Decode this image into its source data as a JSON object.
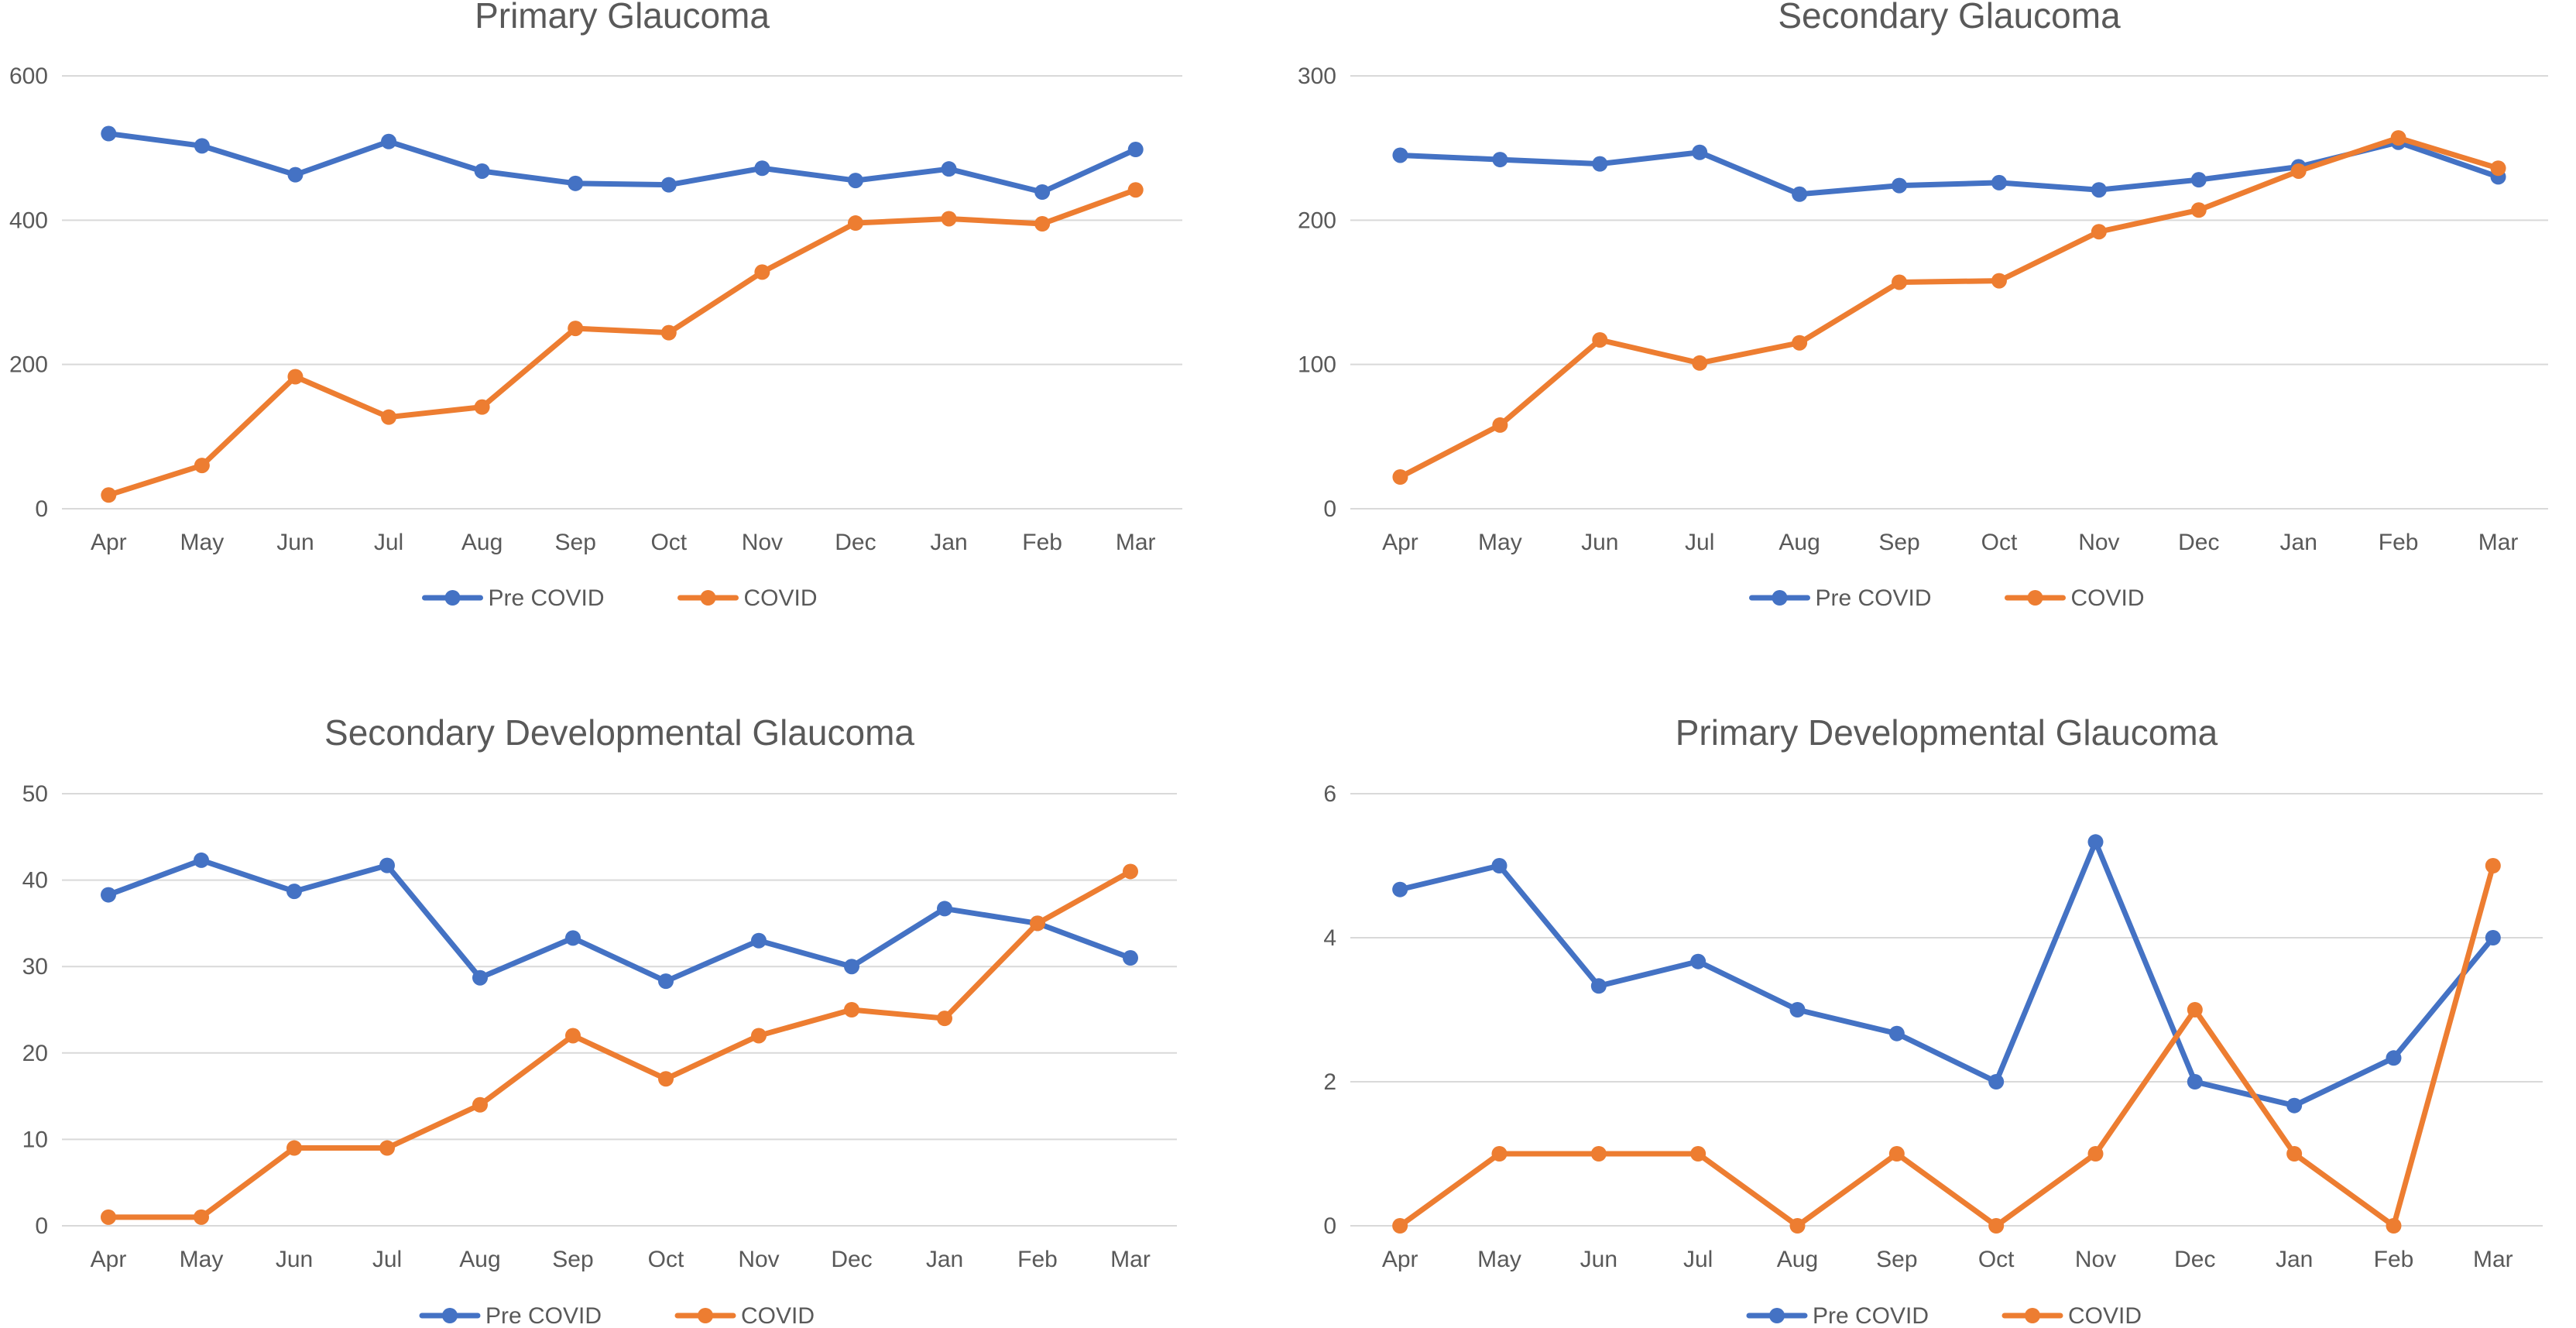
{
  "legend_series_colors": {
    "Pre COVID": "#4472C4",
    "COVID": "#ED7D31"
  },
  "chart_data": [
    {
      "type": "line",
      "title": "Primary Glaucoma",
      "categories": [
        "Apr",
        "May",
        "Jun",
        "Jul",
        "Aug",
        "Sep",
        "Oct",
        "Nov",
        "Dec",
        "Jan",
        "Feb",
        "Mar"
      ],
      "ylim": [
        0,
        600
      ],
      "yticks": [
        "0",
        "200",
        "400",
        "600"
      ],
      "grid": true,
      "legend": "bottom",
      "series": [
        {
          "name": "Pre COVID",
          "color": "#4472C4",
          "values": [
            520,
            503,
            463,
            509,
            468,
            451,
            449,
            472,
            455,
            471,
            439,
            498
          ]
        },
        {
          "name": "COVID",
          "color": "#ED7D31",
          "values": [
            19,
            60,
            183,
            127,
            141,
            250,
            244,
            328,
            396,
            402,
            395,
            442
          ]
        }
      ]
    },
    {
      "type": "line",
      "title": "Secondary Glaucoma",
      "categories": [
        "Apr",
        "May",
        "Jun",
        "Jul",
        "Aug",
        "Sep",
        "Oct",
        "Nov",
        "Dec",
        "Jan",
        "Feb",
        "Mar"
      ],
      "ylim": [
        0,
        300
      ],
      "yticks": [
        "0",
        "100",
        "200",
        "300"
      ],
      "grid": true,
      "legend": "bottom",
      "series": [
        {
          "name": "Pre COVID",
          "color": "#4472C4",
          "values": [
            245,
            242,
            239,
            247,
            218,
            224,
            226,
            221,
            228,
            237,
            254,
            230
          ]
        },
        {
          "name": "COVID",
          "color": "#ED7D31",
          "values": [
            22,
            58,
            117,
            101,
            115,
            157,
            158,
            192,
            207,
            234,
            257,
            236
          ]
        }
      ]
    },
    {
      "type": "line",
      "title": "Secondary Developmental Glaucoma",
      "categories": [
        "Apr",
        "May",
        "Jun",
        "Jul",
        "Aug",
        "Sep",
        "Oct",
        "Nov",
        "Dec",
        "Jan",
        "Feb",
        "Mar"
      ],
      "ylim": [
        0,
        50
      ],
      "yticks": [
        "0",
        "10",
        "20",
        "30",
        "40",
        "50"
      ],
      "grid": true,
      "legend": "bottom",
      "series": [
        {
          "name": "Pre COVID",
          "color": "#4472C4",
          "values": [
            38.3,
            42.3,
            38.7,
            41.7,
            28.7,
            33.3,
            28.3,
            33,
            30,
            36.7,
            35,
            31
          ]
        },
        {
          "name": "COVID",
          "color": "#ED7D31",
          "values": [
            1,
            1,
            9,
            9,
            14,
            22,
            17,
            22,
            25,
            24,
            35,
            41
          ]
        }
      ]
    },
    {
      "type": "line",
      "title": "Primary Developmental Glaucoma",
      "categories": [
        "Apr",
        "May",
        "Jun",
        "Jul",
        "Aug",
        "Sep",
        "Oct",
        "Nov",
        "Dec",
        "Jan",
        "Feb",
        "Mar"
      ],
      "ylim": [
        0,
        6
      ],
      "yticks": [
        "0",
        "2",
        "4",
        "6"
      ],
      "grid": true,
      "legend": "bottom",
      "series": [
        {
          "name": "Pre COVID",
          "color": "#4472C4",
          "values": [
            4.67,
            5,
            3.33,
            3.67,
            3,
            2.67,
            2,
            5.33,
            2,
            1.67,
            2.33,
            4
          ]
        },
        {
          "name": "COVID",
          "color": "#ED7D31",
          "values": [
            0,
            1,
            1,
            1,
            0,
            1,
            0,
            1,
            3,
            1,
            0,
            5
          ]
        }
      ]
    }
  ]
}
